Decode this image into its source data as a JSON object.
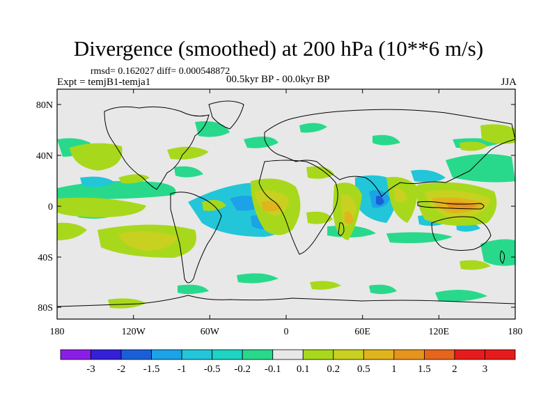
{
  "header": {
    "title": "Divergence (smoothed) at 200 hPa (10**6 m/s)",
    "stats": "rmsd= 0.162027 diff= 0.000548872",
    "experiment": "Expt = temjB1-temja1",
    "period": "00.5kyr BP - 00.0kyr BP",
    "season": "JJA"
  },
  "axes": {
    "lat_labels": [
      "80N",
      "40N",
      "0",
      "40S",
      "80S"
    ],
    "lon_labels": [
      "180",
      "120W",
      "60W",
      "0",
      "60E",
      "120E",
      "180"
    ]
  },
  "colorbar": {
    "labels": [
      "-3",
      "-2",
      "-1.5",
      "-1",
      "-0.5",
      "-0.2",
      "-0.1",
      "0.1",
      "0.2",
      "0.5",
      "1",
      "1.5",
      "2",
      "3"
    ],
    "colors": [
      "#8a1ee6",
      "#3320d8",
      "#1b5fd8",
      "#1ca2e6",
      "#22c6d8",
      "#1cd3c4",
      "#28d98c",
      "#e8e8e8",
      "#a8d81c",
      "#c8d020",
      "#e0b41c",
      "#e6941c",
      "#e6641c",
      "#e61c1c",
      "#e61c1c"
    ]
  },
  "map": {
    "background": "#e8e8e8",
    "coast_color": "#000000"
  }
}
